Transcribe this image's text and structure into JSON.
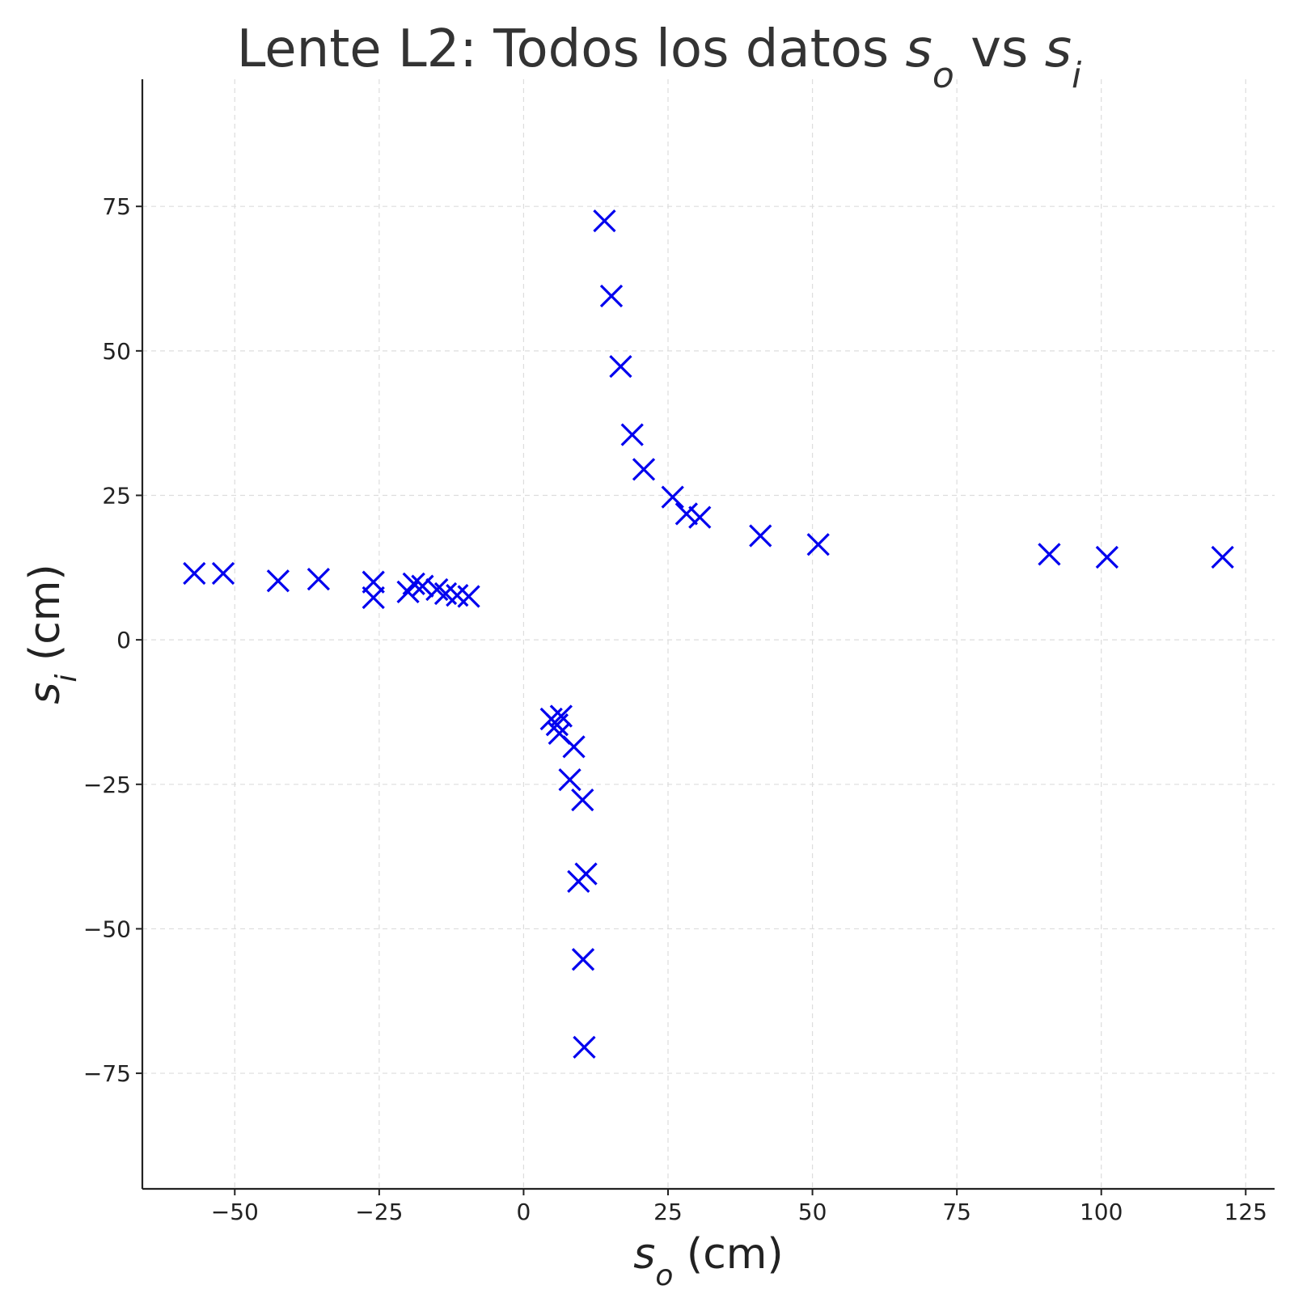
{
  "chart_data": {
    "type": "scatter",
    "title": {
      "main": "Lente L2: Todos los datos ",
      "sym1": "s",
      "sub1": "o",
      "mid": " vs ",
      "sym2": "s",
      "sub2": "i"
    },
    "xlabel": {
      "sym": "s",
      "sub": "o",
      "unit": " (cm)"
    },
    "ylabel": {
      "sym": "s",
      "sub": "i",
      "unit": " (cm)"
    },
    "xlim": [
      -66,
      130
    ],
    "ylim": [
      -95,
      97
    ],
    "xticks": [
      -50,
      -25,
      0,
      25,
      50,
      75,
      100,
      125
    ],
    "yticks": [
      -75,
      -50,
      -25,
      0,
      25,
      50,
      75
    ],
    "xtick_labels": [
      "−50",
      "−25",
      "0",
      "25",
      "50",
      "75",
      "100",
      "125"
    ],
    "ytick_labels": [
      "−75",
      "−50",
      "−25",
      "0",
      "25",
      "50",
      "75"
    ],
    "grid": true,
    "marker": "x",
    "marker_color": "#0000ee",
    "points": [
      {
        "x": -57,
        "y": 11.5
      },
      {
        "x": -52,
        "y": 11.5
      },
      {
        "x": -42.5,
        "y": 10.2
      },
      {
        "x": -35.5,
        "y": 10.5
      },
      {
        "x": -26,
        "y": 10
      },
      {
        "x": -26,
        "y": 7.3
      },
      {
        "x": -20,
        "y": 8.3
      },
      {
        "x": -19,
        "y": 9.7
      },
      {
        "x": -17.5,
        "y": 9.3
      },
      {
        "x": -15,
        "y": 8.7
      },
      {
        "x": -13.5,
        "y": 8
      },
      {
        "x": -11.5,
        "y": 7.7
      },
      {
        "x": -9.5,
        "y": 7.5
      },
      {
        "x": 14,
        "y": 72.5
      },
      {
        "x": 15.2,
        "y": 59.5
      },
      {
        "x": 16.8,
        "y": 47.3
      },
      {
        "x": 18.8,
        "y": 35.5
      },
      {
        "x": 20.8,
        "y": 29.5
      },
      {
        "x": 25.8,
        "y": 24.7
      },
      {
        "x": 28.2,
        "y": 21.8
      },
      {
        "x": 30.5,
        "y": 21.2
      },
      {
        "x": 41,
        "y": 18
      },
      {
        "x": 51,
        "y": 16.5
      },
      {
        "x": 91,
        "y": 14.8
      },
      {
        "x": 101,
        "y": 14.3
      },
      {
        "x": 121,
        "y": 14.3
      },
      {
        "x": 4.8,
        "y": -13.7
      },
      {
        "x": 5.8,
        "y": -14.7
      },
      {
        "x": 6.5,
        "y": -13.2
      },
      {
        "x": 6.2,
        "y": -16.2
      },
      {
        "x": 8.7,
        "y": -18.5
      },
      {
        "x": 8,
        "y": -24.2
      },
      {
        "x": 10.2,
        "y": -27.7
      },
      {
        "x": 10.8,
        "y": -40.5
      },
      {
        "x": 9.5,
        "y": -41.8
      },
      {
        "x": 10.3,
        "y": -55.3
      },
      {
        "x": 10.5,
        "y": -70.5
      }
    ]
  }
}
